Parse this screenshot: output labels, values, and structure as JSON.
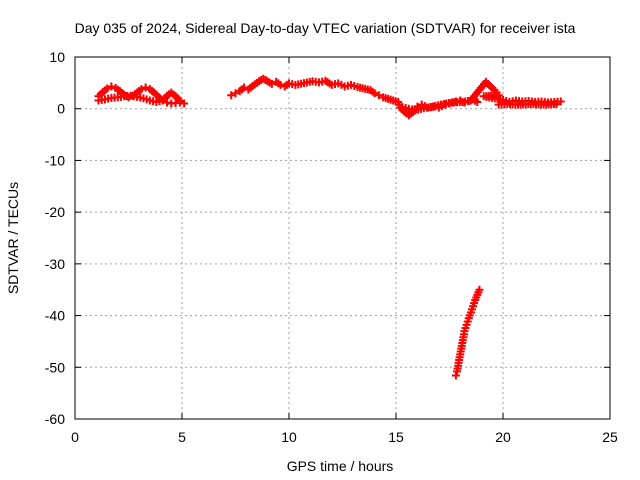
{
  "chart_data": {
    "type": "scatter",
    "title": "Day 035 of 2024, Sidereal Day-to-day VTEC variation (SDTVAR) for receiver ista",
    "xlabel": "GPS time / hours",
    "ylabel": "SDTVAR / TECUs",
    "xlim": [
      0,
      25
    ],
    "ylim": [
      -60,
      10
    ],
    "xticks": [
      0,
      5,
      10,
      15,
      20,
      25
    ],
    "yticks": [
      10,
      0,
      -10,
      -20,
      -30,
      -40,
      -50,
      -60
    ],
    "grid": true,
    "legend": "none",
    "marker": "plus",
    "color": "#ff0000",
    "series": [
      {
        "values": [
          [
            1.1,
            2.4
          ],
          [
            1.3,
            3.2
          ],
          [
            1.5,
            3.9
          ],
          [
            1.7,
            4.3
          ],
          [
            1.9,
            4.0
          ],
          [
            2.1,
            3.4
          ],
          [
            2.3,
            2.7
          ],
          [
            2.5,
            2.2
          ],
          [
            2.7,
            2.5
          ],
          [
            2.9,
            3.1
          ],
          [
            3.1,
            3.8
          ],
          [
            3.3,
            4.1
          ],
          [
            3.5,
            3.8
          ],
          [
            3.7,
            3.1
          ],
          [
            3.9,
            2.3
          ],
          [
            4.1,
            1.6
          ],
          [
            4.3,
            1.2
          ],
          [
            4.5,
            1.0
          ],
          [
            4.7,
            1.1
          ],
          [
            4.9,
            1.2
          ],
          [
            5.1,
            1.0
          ],
          [
            1.1,
            1.6
          ],
          [
            1.4,
            1.8
          ],
          [
            1.7,
            2.1
          ],
          [
            2.0,
            2.2
          ],
          [
            2.3,
            2.4
          ],
          [
            2.6,
            2.5
          ],
          [
            2.9,
            2.3
          ],
          [
            3.2,
            2.0
          ],
          [
            3.5,
            1.6
          ],
          [
            3.8,
            1.3
          ],
          [
            4.1,
            1.6
          ],
          [
            4.3,
            2.5
          ],
          [
            4.5,
            3.1
          ],
          [
            4.7,
            2.4
          ],
          [
            4.9,
            1.6
          ],
          [
            7.3,
            2.6
          ],
          [
            7.5,
            3.0
          ],
          [
            7.7,
            3.4
          ],
          [
            7.9,
            4.1
          ],
          [
            8.1,
            3.7
          ],
          [
            8.3,
            4.4
          ],
          [
            8.6,
            5.3
          ],
          [
            8.8,
            5.8
          ],
          [
            9.0,
            5.3
          ],
          [
            9.2,
            4.8
          ],
          [
            9.4,
            5.2
          ],
          [
            9.6,
            4.6
          ],
          [
            9.8,
            4.3
          ],
          [
            10.0,
            4.9
          ],
          [
            10.3,
            4.6
          ],
          [
            11.1,
            5.3
          ],
          [
            11.4,
            5.1
          ],
          [
            11.7,
            5.4
          ],
          [
            12.0,
            4.6
          ],
          [
            12.3,
            4.9
          ],
          [
            12.6,
            4.3
          ],
          [
            12.9,
            4.6
          ],
          [
            13.2,
            4.2
          ],
          [
            13.8,
            3.6
          ],
          [
            14.0,
            3.0
          ],
          [
            14.2,
            2.6
          ],
          [
            14.4,
            2.2
          ],
          [
            15.1,
            1.3
          ],
          [
            15.2,
            0.2
          ],
          [
            15.4,
            -0.6
          ],
          [
            15.6,
            -1.3
          ],
          [
            15.8,
            -0.6
          ],
          [
            16.0,
            0.4
          ],
          [
            16.2,
            0.8
          ],
          [
            16.5,
            0.2
          ],
          [
            16.8,
            0.4
          ],
          [
            17.0,
            0.2
          ],
          [
            17.3,
            0.8
          ],
          [
            17.5,
            1.0
          ],
          [
            17.8,
            1.4
          ],
          [
            18.0,
            1.6
          ],
          [
            18.2,
            1.2
          ],
          [
            18.4,
            1.5
          ],
          [
            18.6,
            1.8
          ],
          [
            18.8,
            1.3
          ],
          [
            15.3,
            0.3
          ],
          [
            15.6,
            0.0
          ],
          [
            15.9,
            -0.3
          ],
          [
            16.3,
            0.1
          ],
          [
            16.6,
            0.3
          ],
          [
            17.1,
            0.8
          ],
          [
            17.6,
            1.2
          ],
          [
            18.1,
            1.3
          ],
          [
            18.5,
            1.6
          ],
          [
            19.2,
            5.2
          ],
          [
            19.4,
            4.4
          ],
          [
            19.6,
            3.6
          ],
          [
            19.8,
            2.6
          ],
          [
            19.1,
            2.4
          ],
          [
            20.0,
            1.7
          ],
          [
            20.3,
            1.3
          ],
          [
            20.6,
            1.6
          ],
          [
            20.9,
            1.4
          ],
          [
            21.2,
            1.5
          ],
          [
            21.5,
            1.3
          ],
          [
            21.8,
            1.4
          ],
          [
            22.1,
            1.2
          ],
          [
            22.4,
            1.3
          ],
          [
            22.7,
            1.4
          ],
          [
            19.8,
            0.8
          ],
          [
            20.2,
            0.9
          ],
          [
            20.7,
            0.8
          ],
          [
            21.3,
            0.9
          ],
          [
            21.9,
            0.8
          ],
          [
            22.5,
            0.9
          ],
          [
            18.9,
            -35.0
          ],
          [
            18.8,
            -36.0
          ],
          [
            18.7,
            -37.0
          ],
          [
            18.6,
            -38.2
          ],
          [
            18.5,
            -39.4
          ],
          [
            18.4,
            -40.5
          ],
          [
            18.3,
            -41.8
          ],
          [
            18.2,
            -43.0
          ],
          [
            18.15,
            -44.2
          ],
          [
            18.1,
            -45.3
          ],
          [
            18.05,
            -46.4
          ],
          [
            18.0,
            -47.5
          ],
          [
            17.95,
            -48.6
          ],
          [
            17.9,
            -49.7
          ],
          [
            17.85,
            -50.8
          ],
          [
            17.8,
            -51.6
          ]
        ]
      }
    ]
  }
}
